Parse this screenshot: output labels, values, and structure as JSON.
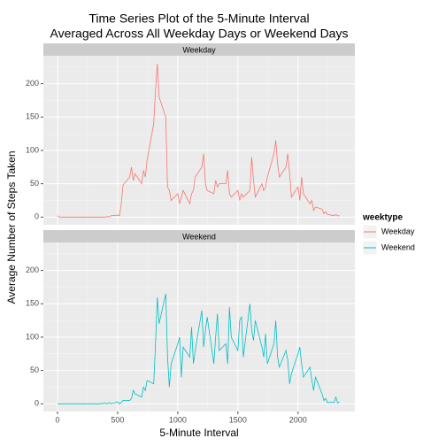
{
  "chart_data": {
    "type": "line",
    "title": [
      "Time Series Plot of the 5-Minute Interval",
      "Averaged Across All Weekday Days or Weekend Days"
    ],
    "x_label": "5-Minute Interval",
    "y_label": "Average Number of Steps Taken",
    "legend_title": "weektype",
    "x": [
      0,
      15,
      30,
      45,
      100,
      115,
      130,
      145,
      200,
      215,
      230,
      245,
      300,
      315,
      330,
      345,
      400,
      415,
      430,
      445,
      500,
      515,
      530,
      545,
      600,
      615,
      630,
      645,
      700,
      715,
      730,
      745,
      800,
      815,
      830,
      845,
      900,
      915,
      930,
      945,
      1000,
      1015,
      1030,
      1045,
      1100,
      1115,
      1130,
      1145,
      1200,
      1215,
      1230,
      1245,
      1300,
      1315,
      1330,
      1345,
      1400,
      1415,
      1430,
      1445,
      1500,
      1515,
      1530,
      1545,
      1600,
      1615,
      1630,
      1645,
      1700,
      1715,
      1730,
      1745,
      1800,
      1815,
      1830,
      1845,
      1900,
      1915,
      1930,
      1945,
      2000,
      2015,
      2030,
      2045,
      2100,
      2115,
      2130,
      2145,
      2200,
      2215,
      2230,
      2245,
      2300,
      2315,
      2330,
      2345
    ],
    "series": [
      {
        "name": "Weekday",
        "color": "#f8766d",
        "values": [
          2,
          0,
          0,
          0,
          0,
          0,
          0,
          0,
          0,
          0,
          0,
          0,
          0,
          0,
          0,
          0,
          0,
          1,
          0,
          2,
          3,
          2,
          20,
          48,
          60,
          75,
          55,
          65,
          50,
          70,
          60,
          85,
          140,
          190,
          230,
          180,
          150,
          45,
          40,
          25,
          35,
          20,
          30,
          40,
          20,
          35,
          40,
          60,
          75,
          95,
          50,
          40,
          35,
          55,
          45,
          50,
          50,
          70,
          35,
          30,
          40,
          25,
          35,
          30,
          40,
          90,
          55,
          30,
          50,
          40,
          45,
          60,
          95,
          115,
          80,
          60,
          75,
          95,
          65,
          30,
          45,
          25,
          60,
          35,
          20,
          25,
          10,
          15,
          12,
          5,
          8,
          4,
          2,
          4,
          2,
          2
        ]
      },
      {
        "name": "Weekend",
        "color": "#00bfc4",
        "values": [
          0,
          0,
          0,
          0,
          0,
          0,
          0,
          0,
          0,
          0,
          0,
          0,
          0,
          0,
          0,
          0,
          1,
          0,
          2,
          0,
          3,
          0,
          2,
          5,
          5,
          8,
          20,
          15,
          10,
          25,
          20,
          35,
          30,
          90,
          160,
          120,
          165,
          70,
          25,
          60,
          90,
          100,
          40,
          85,
          70,
          115,
          60,
          80,
          140,
          85,
          110,
          130,
          60,
          100,
          135,
          80,
          90,
          60,
          145,
          100,
          80,
          125,
          130,
          70,
          150,
          110,
          95,
          125,
          85,
          70,
          105,
          60,
          90,
          125,
          70,
          55,
          80,
          65,
          30,
          45,
          75,
          85,
          60,
          40,
          55,
          35,
          20,
          40,
          15,
          5,
          8,
          2,
          2,
          10,
          1,
          3
        ]
      }
    ],
    "xlim": [
      -117.75,
      2472.75
    ],
    "ylim": [
      -11.5,
      241.9
    ],
    "xticks": [
      0,
      500,
      1000,
      1500,
      2000
    ],
    "yticks": [
      0,
      50,
      100,
      150,
      200
    ],
    "grid": true,
    "legend": "right"
  }
}
